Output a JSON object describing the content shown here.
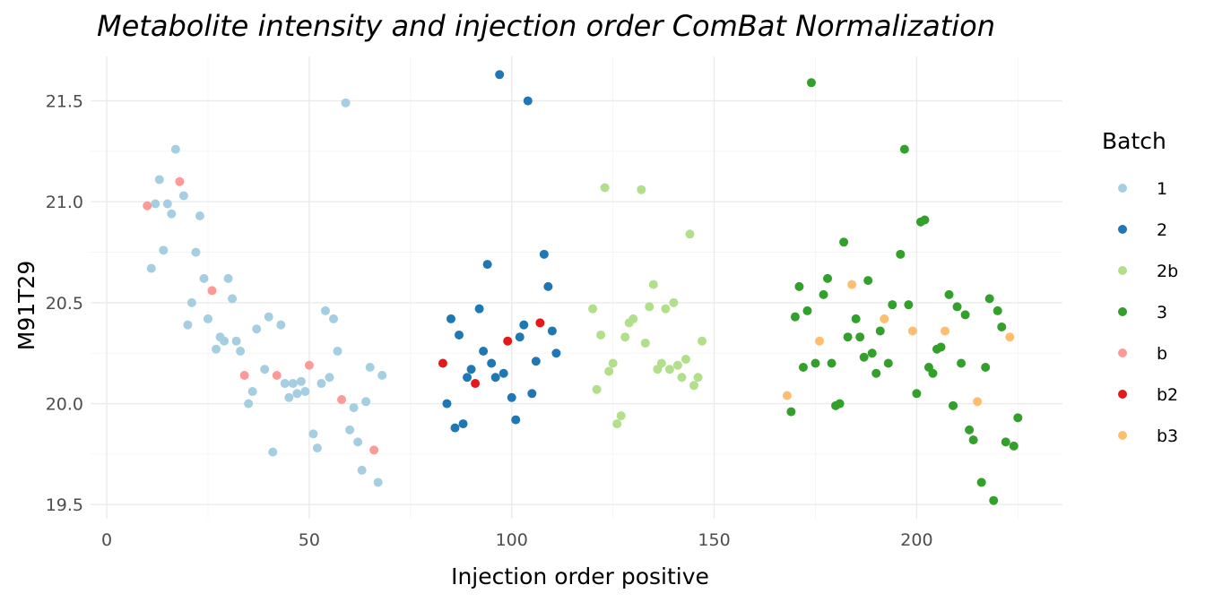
{
  "chart_data": {
    "type": "scatter",
    "title": "Metabolite intensity and injection order ComBat Normalization",
    "xlabel": "Injection order positive",
    "ylabel": "M91T29",
    "xlim": [
      -4,
      236
    ],
    "ylim": [
      19.43,
      21.72
    ],
    "x_ticks": [
      0,
      50,
      100,
      150,
      200
    ],
    "x_tick_labels": [
      "0",
      "50",
      "100",
      "150",
      "200"
    ],
    "y_ticks": [
      19.5,
      20.0,
      20.5,
      21.0,
      21.5
    ],
    "y_tick_labels": [
      "19.5",
      "20.0",
      "20.5",
      "21.0",
      "21.5"
    ],
    "grid": true,
    "legend": {
      "title": "Batch",
      "position": "right"
    },
    "series": [
      {
        "name": "1",
        "color": "#a6cee3",
        "points": [
          [
            11,
            20.67
          ],
          [
            12,
            20.99
          ],
          [
            13,
            21.11
          ],
          [
            14,
            20.76
          ],
          [
            15,
            20.99
          ],
          [
            16,
            20.94
          ],
          [
            17,
            21.26
          ],
          [
            19,
            21.03
          ],
          [
            20,
            20.39
          ],
          [
            21,
            20.5
          ],
          [
            22,
            20.75
          ],
          [
            23,
            20.93
          ],
          [
            24,
            20.62
          ],
          [
            25,
            20.42
          ],
          [
            27,
            20.27
          ],
          [
            28,
            20.33
          ],
          [
            29,
            20.31
          ],
          [
            30,
            20.62
          ],
          [
            31,
            20.52
          ],
          [
            32,
            20.31
          ],
          [
            33,
            20.26
          ],
          [
            35,
            20.0
          ],
          [
            36,
            20.06
          ],
          [
            37,
            20.37
          ],
          [
            39,
            20.17
          ],
          [
            40,
            20.43
          ],
          [
            41,
            19.76
          ],
          [
            43,
            20.39
          ],
          [
            44,
            20.1
          ],
          [
            45,
            20.03
          ],
          [
            46,
            20.1
          ],
          [
            47,
            20.05
          ],
          [
            48,
            20.11
          ],
          [
            49,
            20.06
          ],
          [
            51,
            19.85
          ],
          [
            52,
            19.78
          ],
          [
            53,
            20.1
          ],
          [
            54,
            20.46
          ],
          [
            55,
            20.13
          ],
          [
            56,
            20.42
          ],
          [
            57,
            20.26
          ],
          [
            59,
            21.49
          ],
          [
            60,
            19.87
          ],
          [
            61,
            19.98
          ],
          [
            62,
            19.81
          ],
          [
            63,
            19.67
          ],
          [
            64,
            20.01
          ],
          [
            65,
            20.18
          ],
          [
            67,
            19.61
          ],
          [
            68,
            20.14
          ]
        ]
      },
      {
        "name": "2",
        "color": "#1f78b4",
        "points": [
          [
            84,
            20.0
          ],
          [
            85,
            20.42
          ],
          [
            86,
            19.88
          ],
          [
            87,
            20.34
          ],
          [
            88,
            19.9
          ],
          [
            89,
            20.13
          ],
          [
            90,
            20.17
          ],
          [
            92,
            20.47
          ],
          [
            93,
            20.26
          ],
          [
            94,
            20.69
          ],
          [
            95,
            20.2
          ],
          [
            96,
            20.13
          ],
          [
            97,
            21.63
          ],
          [
            98,
            20.15
          ],
          [
            100,
            20.03
          ],
          [
            101,
            19.92
          ],
          [
            102,
            20.33
          ],
          [
            103,
            20.39
          ],
          [
            104,
            21.5
          ],
          [
            105,
            20.05
          ],
          [
            106,
            20.21
          ],
          [
            108,
            20.74
          ],
          [
            109,
            20.58
          ],
          [
            110,
            20.36
          ],
          [
            111,
            20.25
          ]
        ]
      },
      {
        "name": "2b",
        "color": "#b2df8a",
        "points": [
          [
            120,
            20.47
          ],
          [
            121,
            20.07
          ],
          [
            122,
            20.34
          ],
          [
            123,
            21.07
          ],
          [
            124,
            20.16
          ],
          [
            125,
            20.2
          ],
          [
            126,
            19.9
          ],
          [
            127,
            19.94
          ],
          [
            128,
            20.33
          ],
          [
            129,
            20.4
          ],
          [
            130,
            20.42
          ],
          [
            132,
            21.06
          ],
          [
            133,
            20.3
          ],
          [
            134,
            20.48
          ],
          [
            135,
            20.59
          ],
          [
            136,
            20.17
          ],
          [
            137,
            20.2
          ],
          [
            138,
            20.47
          ],
          [
            139,
            20.17
          ],
          [
            140,
            20.5
          ],
          [
            141,
            20.19
          ],
          [
            142,
            20.13
          ],
          [
            143,
            20.22
          ],
          [
            144,
            20.84
          ],
          [
            145,
            20.09
          ],
          [
            146,
            20.13
          ],
          [
            147,
            20.31
          ]
        ]
      },
      {
        "name": "3",
        "color": "#33a02c",
        "points": [
          [
            169,
            19.96
          ],
          [
            170,
            20.43
          ],
          [
            171,
            20.58
          ],
          [
            172,
            20.18
          ],
          [
            173,
            20.46
          ],
          [
            174,
            21.59
          ],
          [
            175,
            20.2
          ],
          [
            177,
            20.54
          ],
          [
            178,
            20.62
          ],
          [
            179,
            20.2
          ],
          [
            180,
            19.99
          ],
          [
            181,
            20.0
          ],
          [
            182,
            20.8
          ],
          [
            183,
            20.33
          ],
          [
            185,
            20.42
          ],
          [
            186,
            20.33
          ],
          [
            187,
            20.23
          ],
          [
            188,
            20.61
          ],
          [
            189,
            20.25
          ],
          [
            190,
            20.15
          ],
          [
            191,
            20.36
          ],
          [
            193,
            20.2
          ],
          [
            194,
            20.49
          ],
          [
            196,
            20.74
          ],
          [
            197,
            21.26
          ],
          [
            198,
            20.49
          ],
          [
            200,
            20.05
          ],
          [
            201,
            20.9
          ],
          [
            202,
            20.91
          ],
          [
            203,
            20.18
          ],
          [
            204,
            20.15
          ],
          [
            205,
            20.27
          ],
          [
            206,
            20.28
          ],
          [
            208,
            20.54
          ],
          [
            209,
            19.99
          ],
          [
            210,
            20.48
          ],
          [
            211,
            20.2
          ],
          [
            212,
            20.44
          ],
          [
            213,
            19.87
          ],
          [
            214,
            19.82
          ],
          [
            216,
            19.61
          ],
          [
            217,
            20.18
          ],
          [
            218,
            20.52
          ],
          [
            219,
            19.52
          ],
          [
            220,
            20.46
          ],
          [
            221,
            20.38
          ],
          [
            222,
            19.81
          ],
          [
            224,
            19.79
          ],
          [
            225,
            19.93
          ]
        ]
      },
      {
        "name": "b",
        "color": "#fb9a99",
        "points": [
          [
            10,
            20.98
          ],
          [
            18,
            21.1
          ],
          [
            26,
            20.56
          ],
          [
            34,
            20.14
          ],
          [
            42,
            20.14
          ],
          [
            50,
            20.19
          ],
          [
            58,
            20.02
          ],
          [
            66,
            19.77
          ]
        ]
      },
      {
        "name": "b2",
        "color": "#e31a1c",
        "points": [
          [
            83,
            20.2
          ],
          [
            91,
            20.1
          ],
          [
            99,
            20.31
          ],
          [
            107,
            20.4
          ]
        ]
      },
      {
        "name": "b3",
        "color": "#fdbf6f",
        "points": [
          [
            168,
            20.04
          ],
          [
            176,
            20.31
          ],
          [
            184,
            20.59
          ],
          [
            192,
            20.42
          ],
          [
            199,
            20.36
          ],
          [
            207,
            20.36
          ],
          [
            215,
            20.01
          ],
          [
            223,
            20.33
          ]
        ]
      }
    ]
  }
}
